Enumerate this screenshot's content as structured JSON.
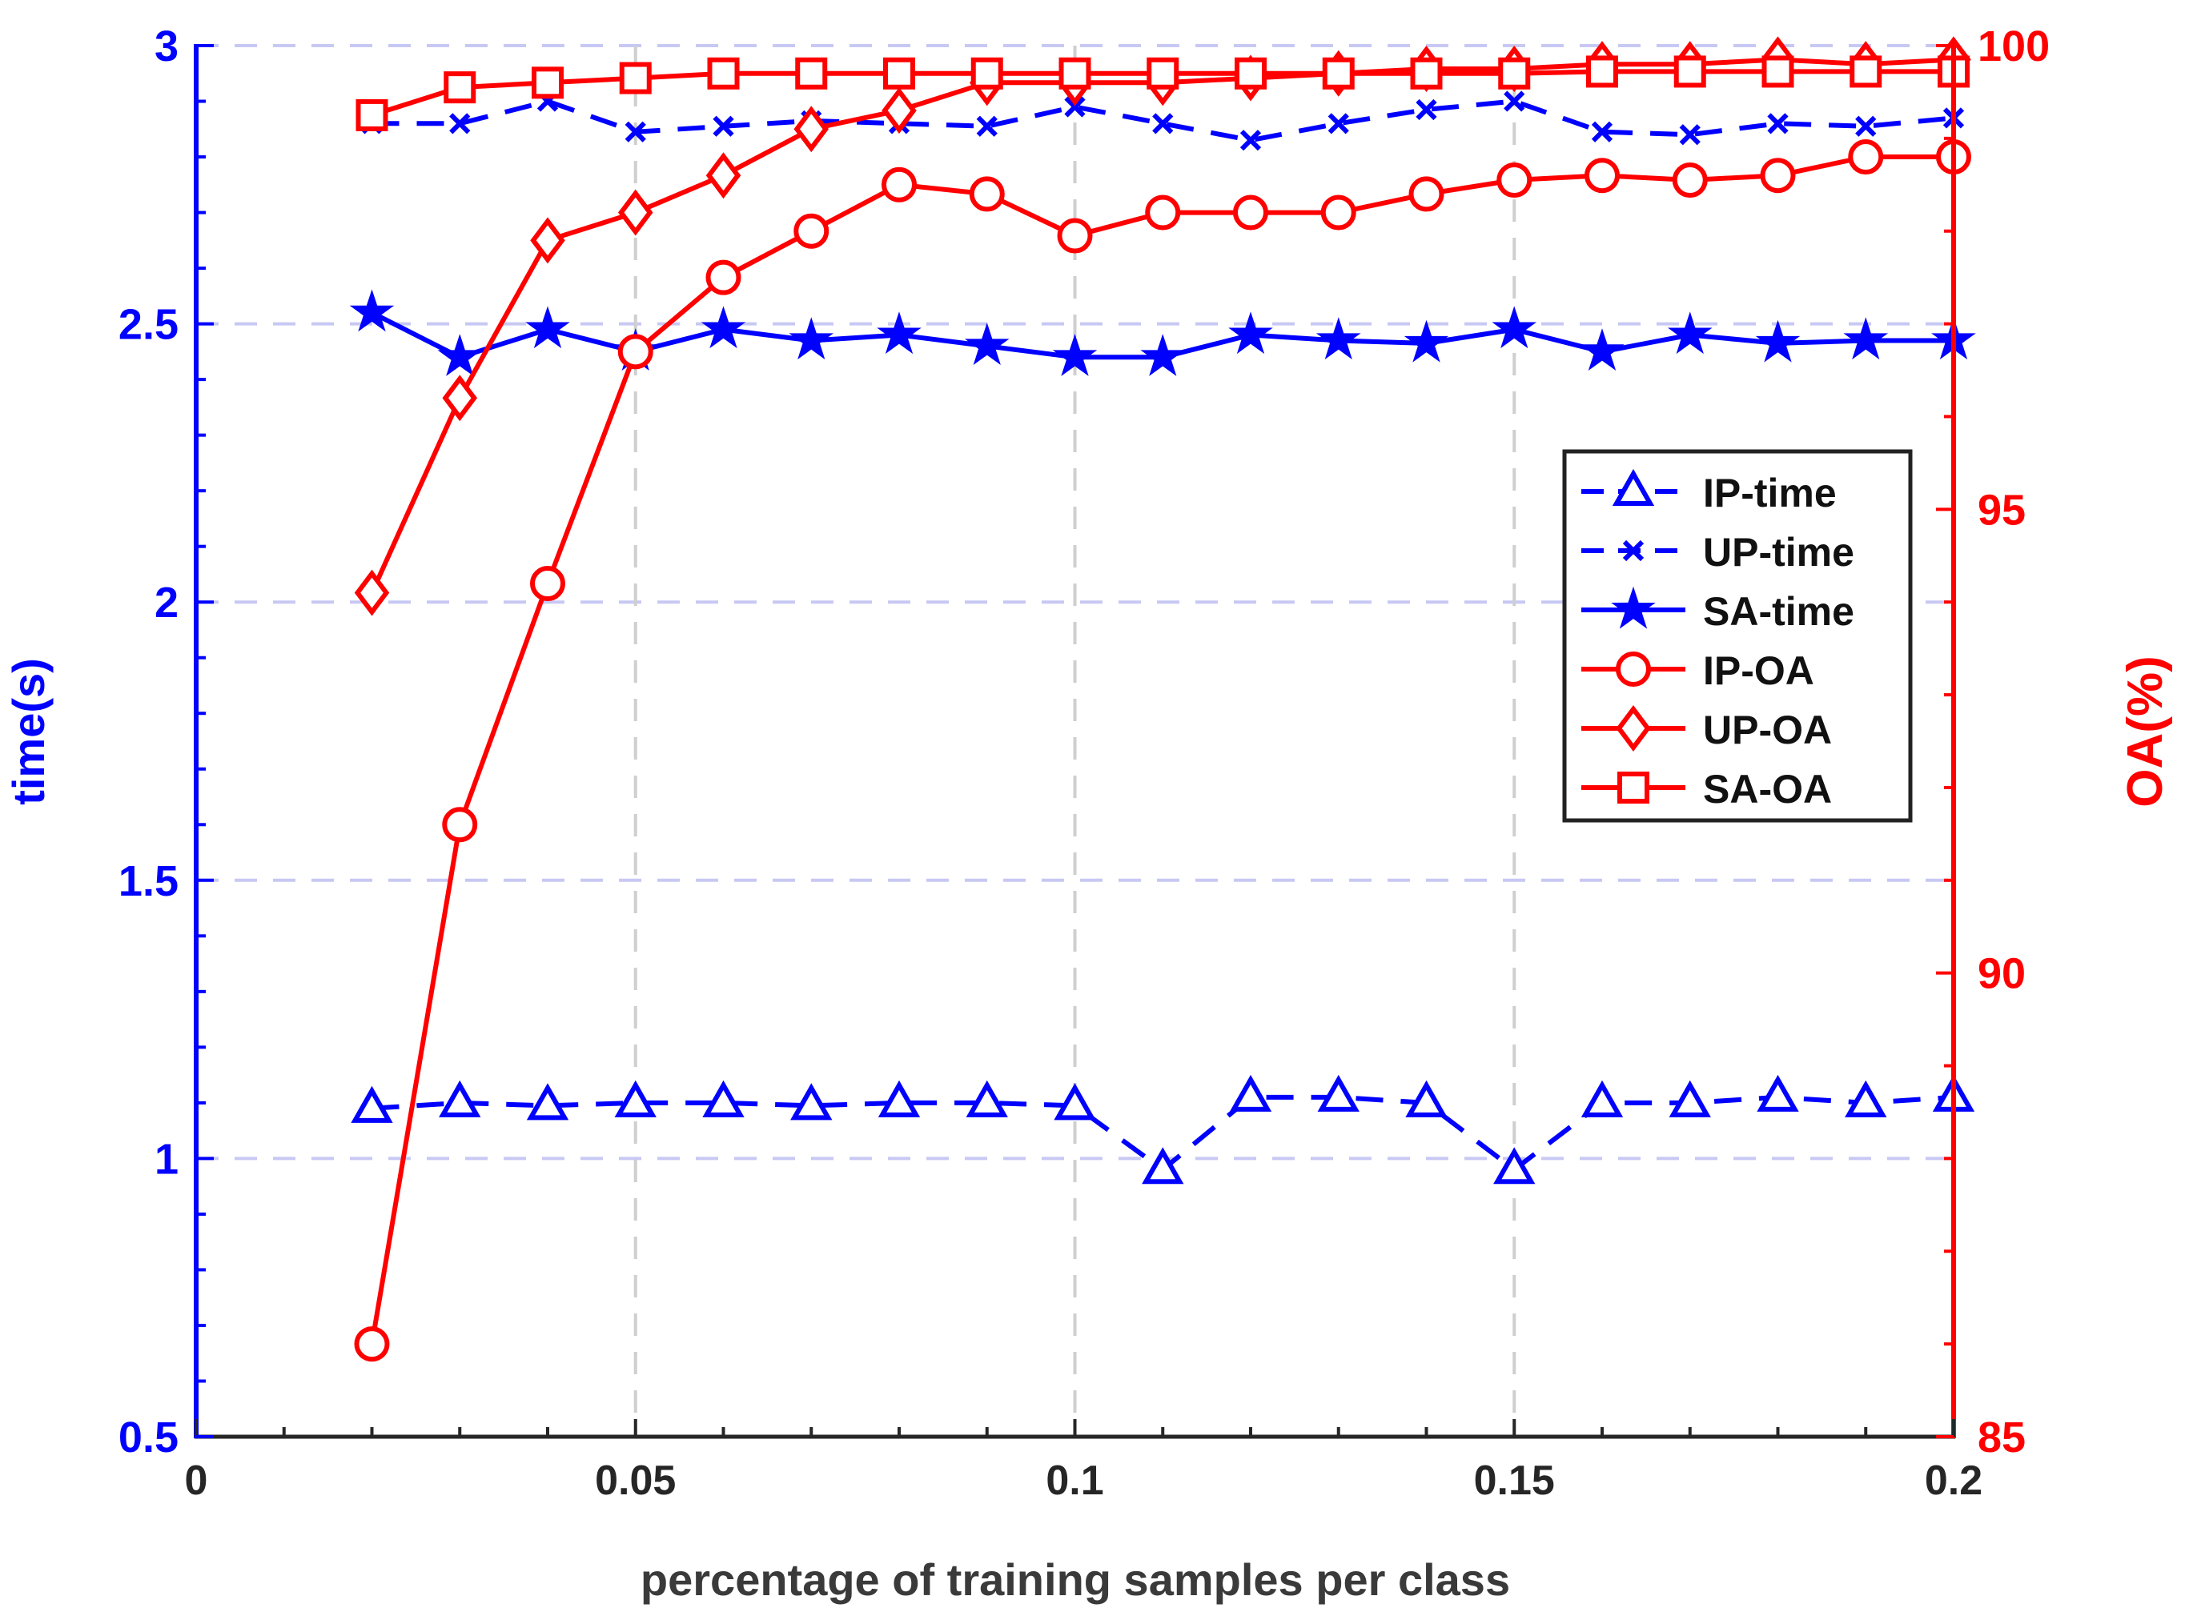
{
  "chart_data": {
    "type": "line",
    "title": "",
    "xlabel": "percentage of training samples per class",
    "ylabel_left": "time(s)",
    "ylabel_right": "OA(%)",
    "xlim": [
      0,
      0.2
    ],
    "ylim_left": [
      0.5,
      3
    ],
    "ylim_right": [
      85,
      100
    ],
    "grid": true,
    "legend_position": "center-right",
    "x_ticks": [
      0,
      0.05,
      0.1,
      0.15,
      0.2
    ],
    "x_tick_labels": [
      "0",
      "0.05",
      "0.1",
      "0.15",
      "0.2"
    ],
    "y_left_ticks": [
      0.5,
      1,
      1.5,
      2,
      2.5,
      3
    ],
    "y_left_tick_labels": [
      "0.5",
      "1",
      "1.5",
      "2",
      "2.5",
      "3"
    ],
    "y_right_ticks": [
      85,
      90,
      95,
      100
    ],
    "y_right_tick_labels": [
      "85",
      "90",
      "95",
      "100"
    ],
    "x": [
      0.02,
      0.03,
      0.04,
      0.05,
      0.06,
      0.07,
      0.08,
      0.09,
      0.1,
      0.11,
      0.12,
      0.13,
      0.14,
      0.15,
      0.16,
      0.17,
      0.18,
      0.19,
      0.2
    ],
    "series": [
      {
        "name": "IP-time",
        "axis": "left",
        "color": "#0000ff",
        "dash": true,
        "marker": "triangle",
        "values": [
          1.09,
          1.1,
          1.095,
          1.1,
          1.1,
          1.095,
          1.1,
          1.1,
          1.095,
          0.98,
          1.11,
          1.11,
          1.1,
          0.98,
          1.1,
          1.1,
          1.11,
          1.1,
          1.11
        ]
      },
      {
        "name": "UP-time",
        "axis": "left",
        "color": "#0000ff",
        "dash": true,
        "marker": "x",
        "values": [
          2.86,
          2.86,
          2.9,
          2.845,
          2.855,
          2.865,
          2.86,
          2.855,
          2.89,
          2.86,
          2.83,
          2.86,
          2.885,
          2.9,
          2.845,
          2.84,
          2.86,
          2.855,
          2.87
        ]
      },
      {
        "name": "SA-time",
        "axis": "left",
        "color": "#0000ff",
        "dash": false,
        "marker": "star",
        "values": [
          2.52,
          2.44,
          2.49,
          2.45,
          2.49,
          2.47,
          2.48,
          2.46,
          2.44,
          2.44,
          2.48,
          2.47,
          2.465,
          2.49,
          2.45,
          2.48,
          2.465,
          2.47,
          2.47
        ]
      },
      {
        "name": "IP-OA",
        "axis": "right",
        "color": "#ff0000",
        "dash": false,
        "marker": "circle",
        "values": [
          86.0,
          91.6,
          94.2,
          96.7,
          97.5,
          98.0,
          98.5,
          98.4,
          97.95,
          98.2,
          98.2,
          98.2,
          98.4,
          98.55,
          98.6,
          98.55,
          98.6,
          98.8,
          98.8
        ]
      },
      {
        "name": "UP-OA",
        "axis": "right",
        "color": "#ff0000",
        "dash": false,
        "marker": "diamond",
        "values": [
          94.1,
          96.2,
          97.9,
          98.2,
          98.6,
          99.1,
          99.3,
          99.6,
          99.6,
          99.6,
          99.65,
          99.7,
          99.75,
          99.75,
          99.8,
          99.8,
          99.85,
          99.8,
          99.85
        ]
      },
      {
        "name": "SA-OA",
        "axis": "right",
        "color": "#ff0000",
        "dash": false,
        "marker": "square",
        "values": [
          99.25,
          99.55,
          99.6,
          99.65,
          99.7,
          99.7,
          99.7,
          99.7,
          99.7,
          99.7,
          99.7,
          99.7,
          99.7,
          99.7,
          99.72,
          99.72,
          99.72,
          99.72,
          99.72
        ]
      }
    ]
  }
}
